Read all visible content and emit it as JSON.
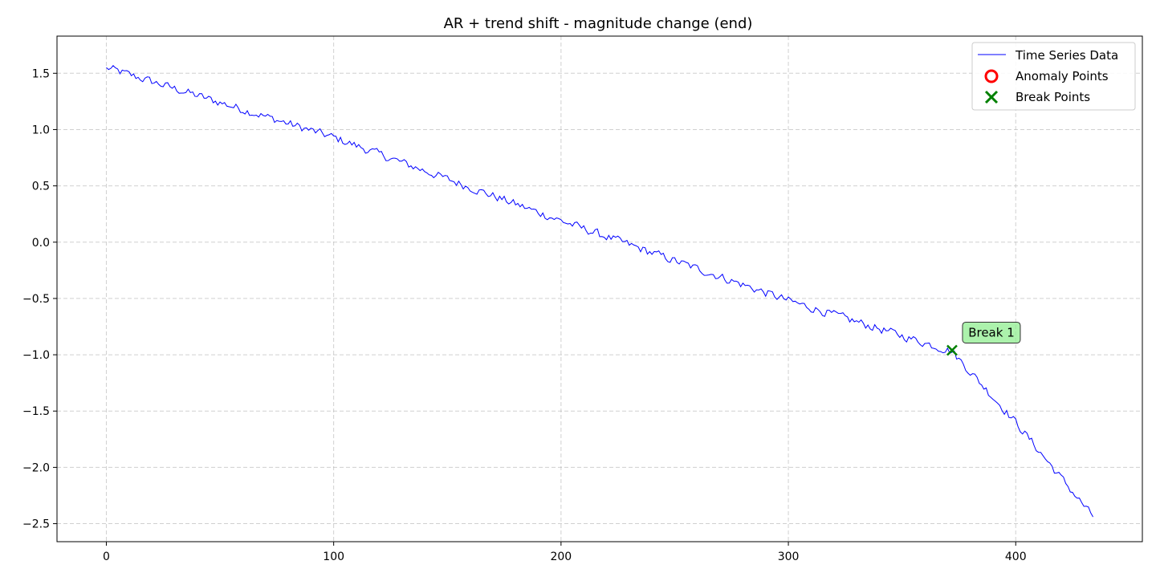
{
  "chart_data": {
    "type": "line",
    "title": "AR + trend shift - magnitude change (end)",
    "xlabel": "",
    "ylabel": "",
    "xlim": [
      -21.7,
      455.7
    ],
    "ylim": [
      -2.66,
      1.83
    ],
    "x_ticks": [
      0,
      100,
      200,
      300,
      400
    ],
    "x_tick_labels": [
      "0",
      "100",
      "200",
      "300",
      "400"
    ],
    "y_ticks": [
      1.5,
      1.0,
      0.5,
      0.0,
      -0.5,
      -1.0,
      -1.5,
      -2.0,
      -2.5
    ],
    "y_tick_labels": [
      "1.5",
      "1.0",
      "0.5",
      "0.0",
      "−0.5",
      "−1.0",
      "−1.5",
      "−2.0",
      "−2.5"
    ],
    "grid": true,
    "legend_position": "top-right",
    "series": [
      {
        "name": "Time Series Data",
        "color": "#0000ff",
        "n_points": 435,
        "knots": [
          {
            "x": 0,
            "y": 1.55
          },
          {
            "x": 100,
            "y": 0.93
          },
          {
            "x": 200,
            "y": 0.19
          },
          {
            "x": 300,
            "y": -0.52
          },
          {
            "x": 372,
            "y": -0.97
          },
          {
            "x": 400,
            "y": -1.6
          },
          {
            "x": 434,
            "y": -2.44
          }
        ],
        "noise_amplitude": 0.035
      }
    ],
    "anomaly_points": [],
    "break_points": [
      {
        "x": 372,
        "y": -0.96,
        "label": "Break 1"
      }
    ],
    "legend": [
      {
        "label": "Time Series Data",
        "kind": "line",
        "color": "#0000ff"
      },
      {
        "label": "Anomaly Points",
        "kind": "circle",
        "color": "#ff0000"
      },
      {
        "label": "Break Points",
        "kind": "x",
        "color": "#008000"
      }
    ]
  }
}
